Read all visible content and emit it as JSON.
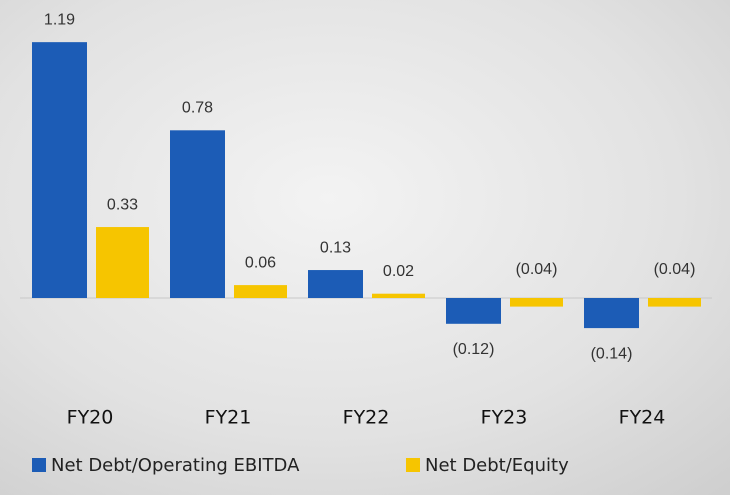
{
  "chart_data": {
    "type": "bar",
    "categories": [
      "FY20",
      "FY21",
      "FY22",
      "FY23",
      "FY24"
    ],
    "series": [
      {
        "name": "Net Debt/Operating EBITDA",
        "color": "#1c5cb6",
        "values": [
          1.19,
          0.78,
          0.13,
          -0.12,
          -0.14
        ],
        "value_labels": [
          "1.19",
          "0.78",
          "0.13",
          "(0.12)",
          "(0.14)"
        ]
      },
      {
        "name": "Net Debt/Equity",
        "color": "#f6c500",
        "values": [
          0.33,
          0.06,
          0.02,
          -0.04,
          -0.04
        ],
        "value_labels": [
          "0.33",
          "0.06",
          "0.02",
          "(0.04)",
          "(0.04)"
        ]
      }
    ]
  }
}
